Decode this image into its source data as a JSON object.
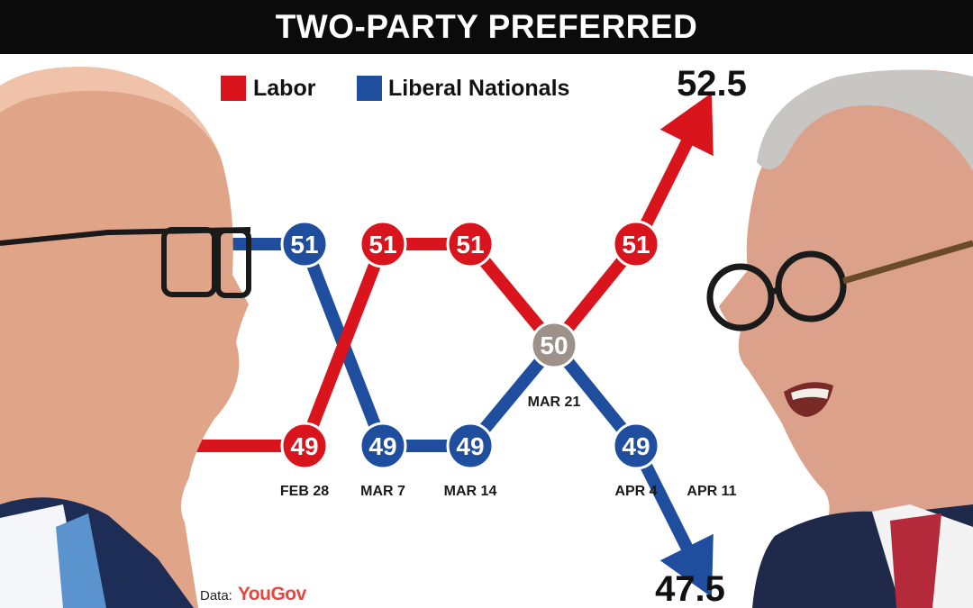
{
  "header": {
    "title": "TWO-PARTY PREFERRED"
  },
  "source": {
    "label": "Data:",
    "brand": "YouGov"
  },
  "colors": {
    "labor": "#d9141c",
    "liberal": "#1f4e9e",
    "tie": "#9e918a",
    "header_bg": "#0b0b0b"
  },
  "photos": {
    "left": "Peter Dutton",
    "right": "Anthony Albanese"
  },
  "chart_data": {
    "type": "line",
    "title": "TWO-PARTY PREFERRED",
    "categories": [
      "",
      "FEB 28",
      "MAR 7",
      "MAR 14",
      "MAR 21",
      "APR 4",
      "APR 11"
    ],
    "series": [
      {
        "name": "Labor",
        "color": "#d9141c",
        "values": [
          49,
          49,
          51,
          51,
          50,
          51,
          52.5
        ]
      },
      {
        "name": "Liberal Nationals",
        "color": "#1f4e9e",
        "values": [
          51,
          51,
          49,
          49,
          50,
          49,
          47.5
        ]
      }
    ],
    "labeled_points": [
      1,
      2,
      3,
      4,
      5
    ],
    "end_labels": {
      "labor": "52.5",
      "liberal": "47.5"
    },
    "legend": {
      "position": "top",
      "entries": [
        "Labor",
        "Liberal Nationals"
      ]
    },
    "ylim": [
      47.5,
      52.5
    ],
    "grid": false
  }
}
